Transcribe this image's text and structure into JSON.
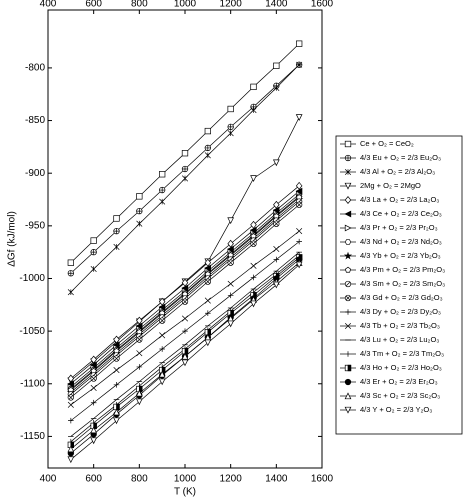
{
  "chart_data": {
    "type": "line",
    "x_label": "T (K)",
    "y_label": "ΔGf (kJ/mol)",
    "x": [
      500,
      600,
      700,
      800,
      900,
      1000,
      1100,
      1200,
      1300,
      1400,
      1500
    ],
    "xlim": [
      400,
      1600
    ],
    "xticks": [
      400,
      600,
      800,
      1000,
      1200,
      1400,
      1600
    ],
    "ylim": [
      -1180,
      -745
    ],
    "yticks": [
      -1150,
      -1100,
      -1050,
      -1000,
      -950,
      -900,
      -850,
      -800
    ],
    "series": [
      {
        "name": "Ce + O₂ = CeO₂",
        "color": "#000000",
        "marker": "square",
        "values": [
          -985,
          -964,
          -943,
          -922,
          -901,
          -881,
          -860,
          -839,
          -818,
          -798,
          -777
        ]
      },
      {
        "name": "4/3 Eu + O₂ = 2/3 Eu₂O₃",
        "color": "#000000",
        "marker": "circle-plus",
        "values": [
          -995,
          -975,
          -955,
          -936,
          -916,
          -896,
          -876,
          -856,
          -837,
          -817,
          -797
        ]
      },
      {
        "name": "4/3 Al + O₂ = 2/3 Al₂O₃",
        "color": "#000000",
        "marker": "x-star",
        "values": [
          -1013,
          -991,
          -970,
          -948,
          -927,
          -905,
          -883,
          -862,
          -840,
          -819,
          -797
        ]
      },
      {
        "name": "2Mg + O₂ = 2MgO",
        "color": "#000000",
        "marker": "triangle-down",
        "values": [
          -1097,
          -1079,
          -1060,
          -1041,
          -1022,
          -1003,
          -984,
          -945,
          -905,
          -890,
          -847
        ]
      },
      {
        "name": "4/3 La + O₂ = 2/3 La₂O₃",
        "color": "#000000",
        "marker": "diamond",
        "values": [
          -1095,
          -1077,
          -1058,
          -1040,
          -1022,
          -1004,
          -985,
          -967,
          -949,
          -930,
          -912
        ]
      },
      {
        "name": "4/3 Ce + O₂ = 2/3 Ce₂O₃",
        "color": "#000000",
        "marker": "triangle-left-filled",
        "values": [
          -1100,
          -1082,
          -1063,
          -1045,
          -1027,
          -1009,
          -990,
          -972,
          -954,
          -935,
          -917
        ]
      },
      {
        "name": "4/3 Pr + O₂ = 2/3 Pr₂O₃",
        "color": "#000000",
        "marker": "triangle-right",
        "values": [
          -1103,
          -1085,
          -1066,
          -1048,
          -1030,
          -1012,
          -993,
          -975,
          -957,
          -938,
          -920
        ]
      },
      {
        "name": "4/3 Nd + O₂ = 2/3 Nd₂O₃",
        "color": "#000000",
        "marker": "hexagon",
        "values": [
          -1105,
          -1087,
          -1068,
          -1050,
          -1032,
          -1014,
          -995,
          -977,
          -959,
          -940,
          -922
        ]
      },
      {
        "name": "4/3 Yb + O₂ = 2/3 Yb₂O₃",
        "color": "#000000",
        "marker": "star",
        "values": [
          -1108,
          -1090,
          -1071,
          -1053,
          -1035,
          -1017,
          -998,
          -980,
          -962,
          -943,
          -925
        ]
      },
      {
        "name": "4/3 Pm + O₂ = 2/3 Pm₂O₃",
        "color": "#000000",
        "marker": "pentagon",
        "values": [
          -1106,
          -1088,
          -1069,
          -1051,
          -1033,
          -1015,
          -996,
          -978,
          -960,
          -941,
          -923
        ]
      },
      {
        "name": "4/3 Sm + O₂ = 2/3 Sm₂O₃",
        "color": "#000000",
        "marker": "circle-slash",
        "values": [
          -1110,
          -1092,
          -1073,
          -1055,
          -1037,
          -1019,
          -1000,
          -982,
          -964,
          -945,
          -927
        ]
      },
      {
        "name": "4/3 Gd + O₂ = 2/3 Gd₂O₃",
        "color": "#000000",
        "marker": "circle-cross",
        "values": [
          -1113,
          -1095,
          -1076,
          -1058,
          -1040,
          -1022,
          -1003,
          -985,
          -967,
          -948,
          -930
        ]
      },
      {
        "name": "4/3 Dy + O₂ = 2/3 Dy₂O₃",
        "color": "#000000",
        "marker": "plus",
        "values": [
          -1135,
          -1118,
          -1101,
          -1084,
          -1067,
          -1050,
          -1033,
          -1016,
          -999,
          -982,
          -965
        ]
      },
      {
        "name": "4/3 Tb + O₂ = 2/3 Tb₂O₃",
        "color": "#000000",
        "marker": "x",
        "values": [
          -1120,
          -1104,
          -1087,
          -1071,
          -1054,
          -1038,
          -1021,
          -1005,
          -988,
          -972,
          -955
        ]
      },
      {
        "name": "4/3 Lu + O₂ = 2/3 Lu₂O₃",
        "color": "#000000",
        "marker": "dash",
        "values": [
          -1150,
          -1133,
          -1115,
          -1098,
          -1080,
          -1063,
          -1045,
          -1028,
          -1010,
          -993,
          -975
        ]
      },
      {
        "name": "4/3 Tm + O₂ = 2/3 Tm₂O₃",
        "color": "#000000",
        "marker": "vbar",
        "values": [
          -1155,
          -1137,
          -1120,
          -1102,
          -1084,
          -1067,
          -1049,
          -1031,
          -1013,
          -996,
          -978
        ]
      },
      {
        "name": "4/3 Ho + O₂ = 2/3 Ho₂O₃",
        "color": "#000000",
        "marker": "square-half",
        "values": [
          -1158,
          -1140,
          -1122,
          -1105,
          -1087,
          -1069,
          -1051,
          -1033,
          -1016,
          -998,
          -980
        ]
      },
      {
        "name": "4/3 Er + O₂ = 2/3 Er₂O₃",
        "color": "#000000",
        "marker": "circle-filled",
        "values": [
          -1166,
          -1148,
          -1129,
          -1111,
          -1092,
          -1074,
          -1056,
          -1037,
          -1019,
          -1000,
          -982
        ]
      },
      {
        "name": "4/3 Sc + O₂ = 2/3 Sc₂O₃",
        "color": "#000000",
        "marker": "triangle-up",
        "values": [
          -1162,
          -1144,
          -1127,
          -1109,
          -1091,
          -1074,
          -1056,
          -1038,
          -1020,
          -1003,
          -985
        ]
      },
      {
        "name": "4/3 Y + O₂ = 2/3 Y₂O₃",
        "color": "#000000",
        "marker": "triangle-down",
        "values": [
          -1172,
          -1154,
          -1135,
          -1117,
          -1098,
          -1080,
          -1061,
          -1043,
          -1024,
          -1006,
          -987
        ]
      }
    ]
  }
}
